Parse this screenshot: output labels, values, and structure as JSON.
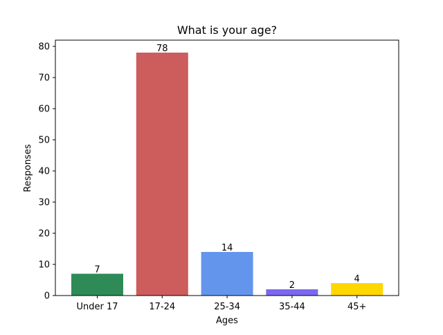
{
  "chart_data": {
    "type": "bar",
    "title": "What is your age?",
    "xlabel": "Ages",
    "ylabel": "Responses",
    "categories": [
      "Under 17",
      "17-24",
      "25-34",
      "35-44",
      "45+"
    ],
    "values": [
      7,
      78,
      14,
      2,
      4
    ],
    "value_labels": [
      "7",
      "78",
      "14",
      "2",
      "4"
    ],
    "colors": [
      "#2e8b57",
      "#cd5c5c",
      "#6495ed",
      "#7b68ee",
      "#ffd700"
    ],
    "ylim": [
      0,
      82
    ],
    "yticks": [
      0,
      10,
      20,
      30,
      40,
      50,
      60,
      70,
      80
    ],
    "ytick_labels": [
      "0",
      "10",
      "20",
      "30",
      "40",
      "50",
      "60",
      "70",
      "80"
    ],
    "grid": false,
    "legend": "none"
  }
}
